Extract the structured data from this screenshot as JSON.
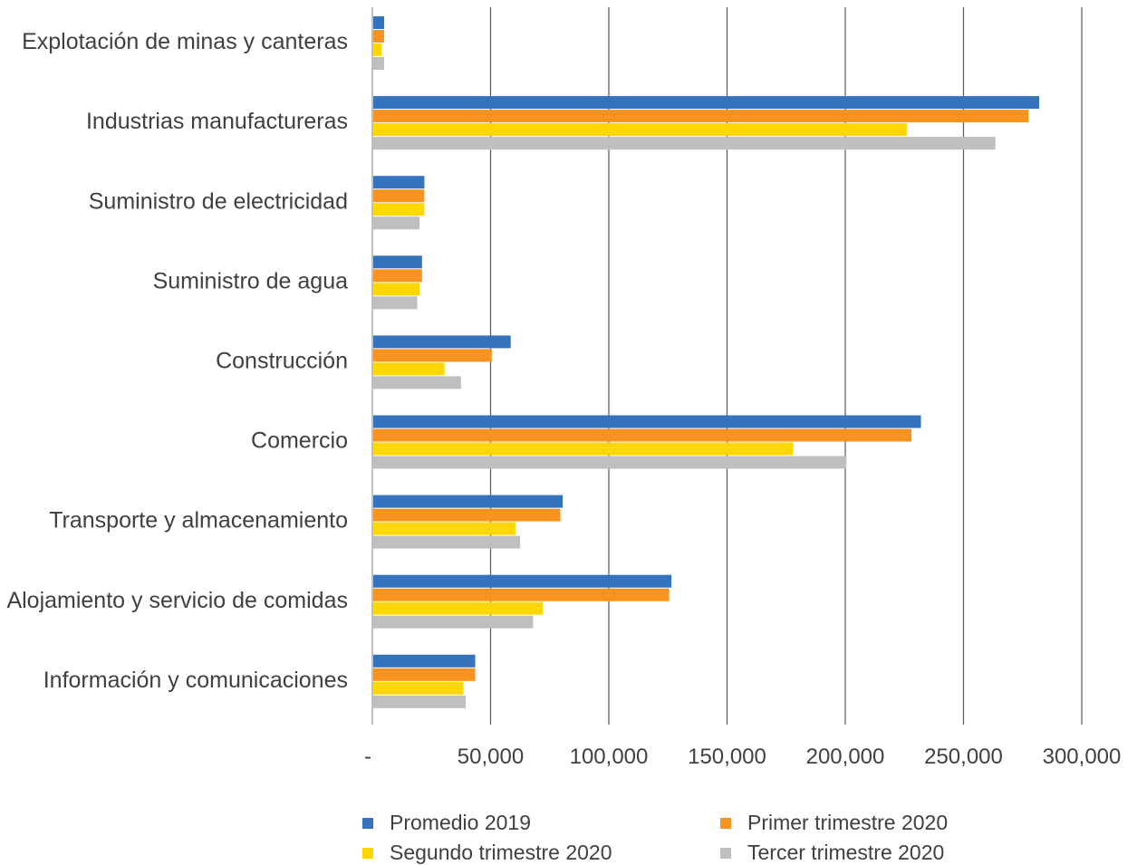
{
  "chart_data": {
    "type": "bar",
    "orientation": "horizontal",
    "categories": [
      "Explotación de minas y canteras",
      "Industrias manufactureras",
      "Suministro de electricidad",
      "Suministro de agua",
      "Construcción",
      "Comercio",
      "Transporte y almacenamiento",
      "Alojamiento y servicio de comidas",
      "Información y comunicaciones"
    ],
    "series": [
      {
        "name": "Promedio 2019",
        "color": "#3573BD",
        "values": [
          5000,
          282000,
          22000,
          21000,
          58500,
          232000,
          80500,
          126500,
          43500
        ]
      },
      {
        "name": "Primer trimestre 2020",
        "color": "#F7931E",
        "values": [
          5000,
          277500,
          22000,
          21000,
          50500,
          228000,
          79500,
          125500,
          43500
        ]
      },
      {
        "name": "Segundo trimestre 2020",
        "color": "#FFD700",
        "values": [
          4000,
          226000,
          22000,
          20000,
          30500,
          178000,
          60500,
          72000,
          38500
        ]
      },
      {
        "name": "Tercer trimestre 2020",
        "color": "#BFBFBF",
        "values": [
          5000,
          263500,
          20000,
          19000,
          37500,
          200500,
          62500,
          68000,
          39500
        ]
      }
    ],
    "xlim": [
      0,
      300000
    ],
    "ticks": [
      0,
      50000,
      100000,
      150000,
      200000,
      250000,
      300000
    ],
    "tick_labels": [
      "-",
      "50,000",
      "100,000",
      "150,000",
      "200,000",
      "250,000",
      "300,000"
    ],
    "grid": true,
    "legend_position": "bottom"
  }
}
